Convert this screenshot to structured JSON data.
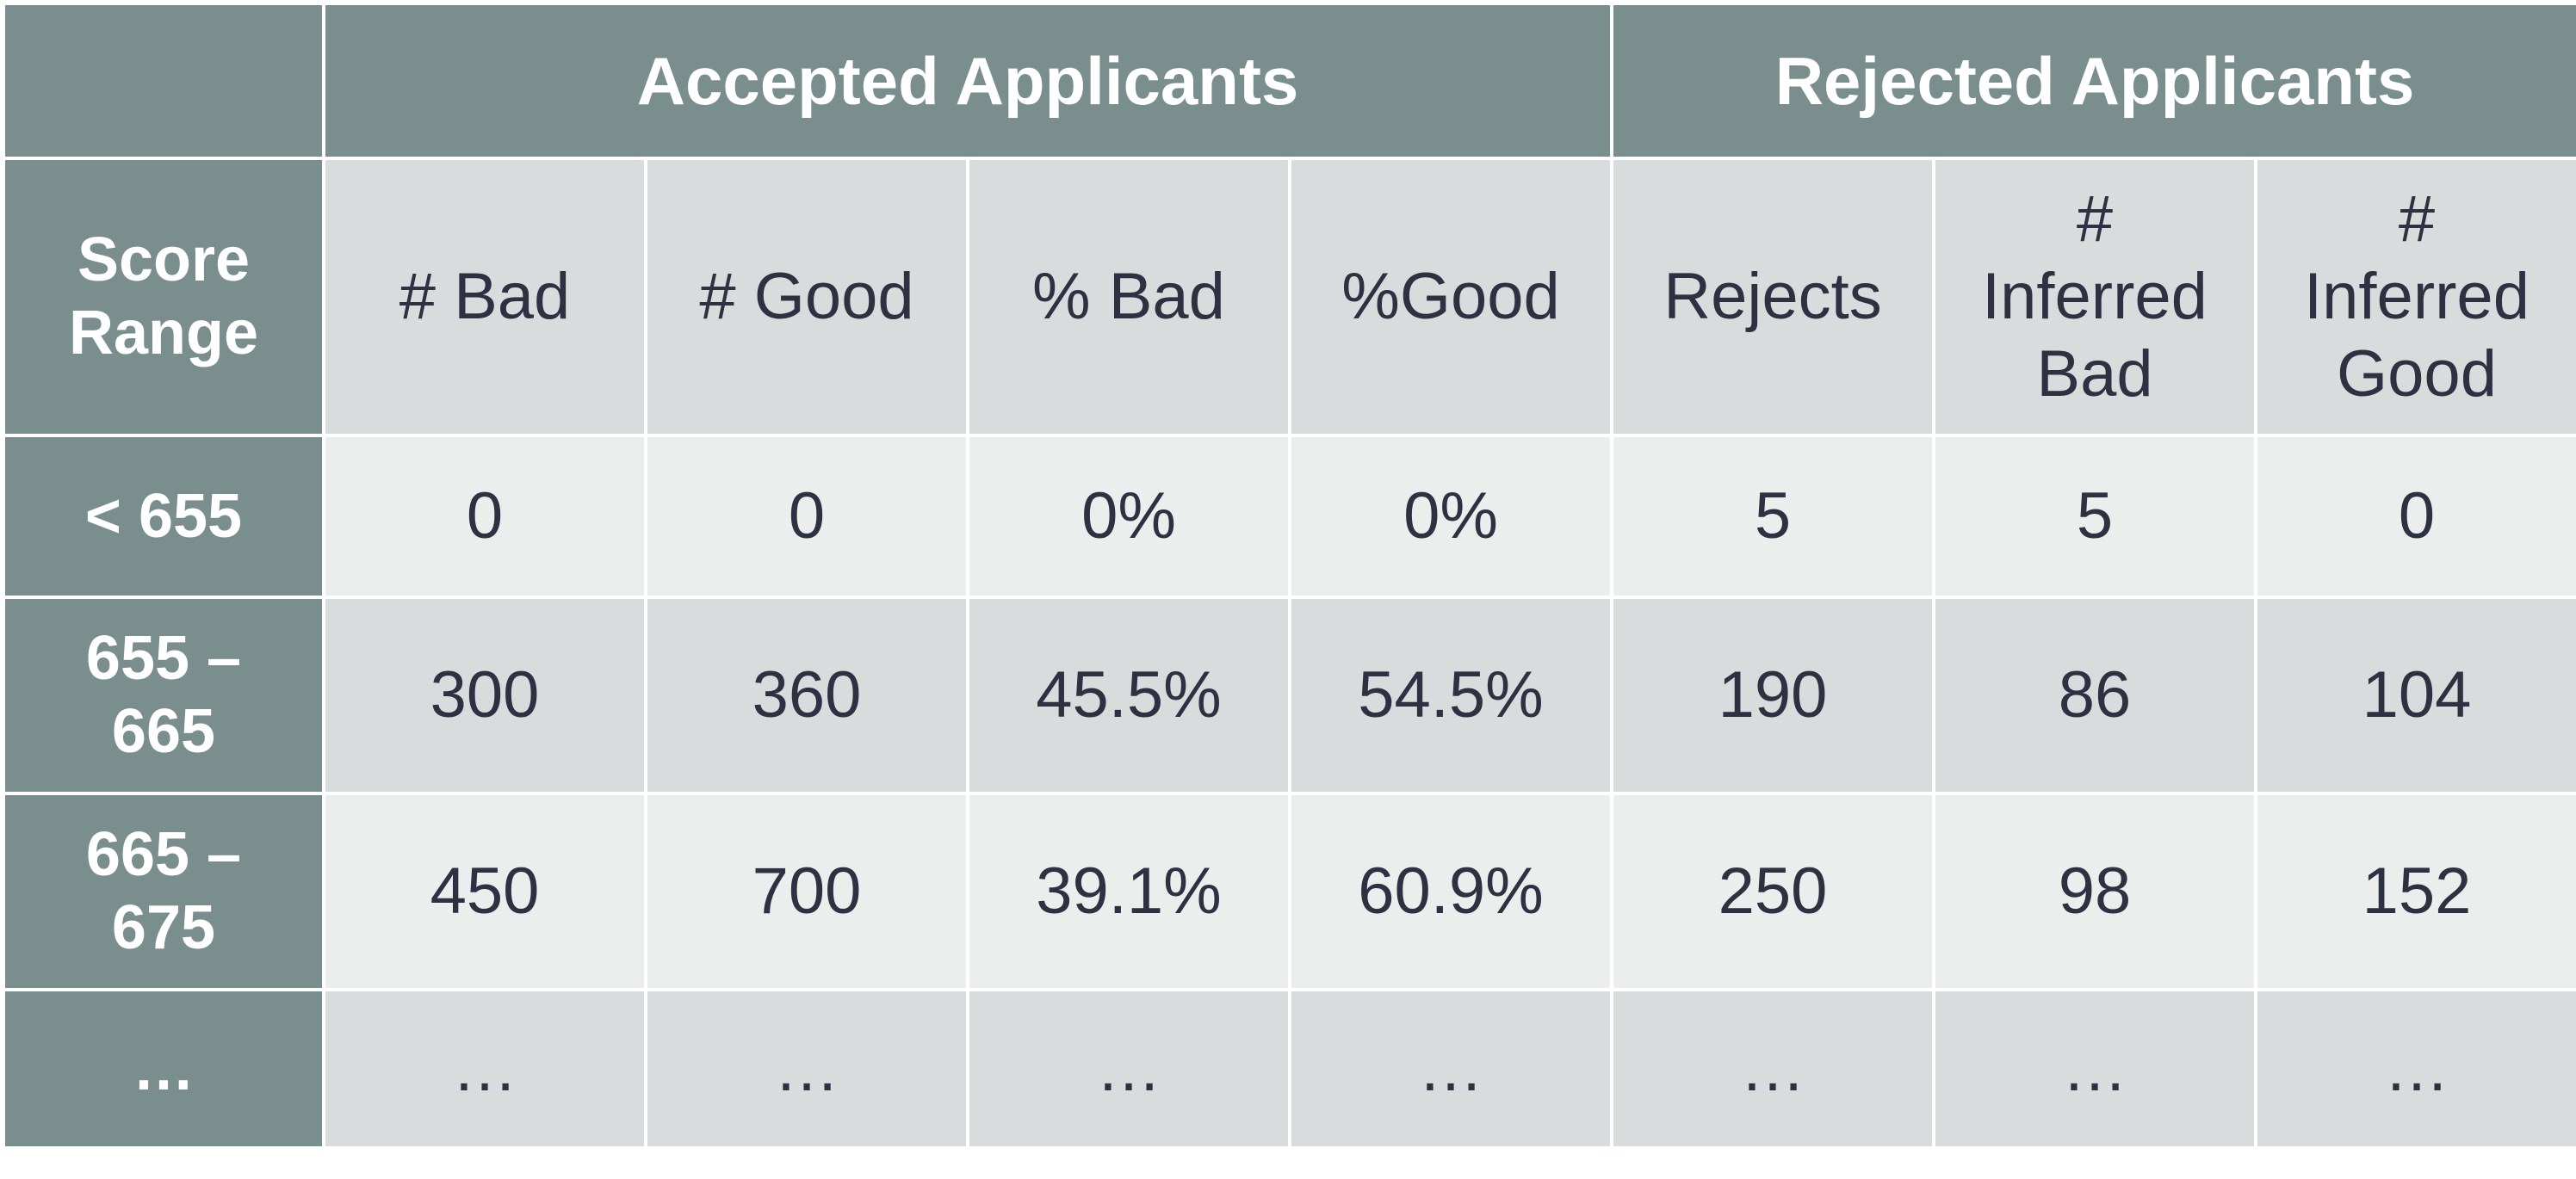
{
  "table": {
    "group_headers": {
      "corner": "",
      "accepted": "Accepted Applicants",
      "rejected": "Rejected Applicants"
    },
    "column_headers": [
      "Score\nRange",
      "# Bad",
      "# Good",
      "% Bad",
      "%Good",
      "Rejects",
      "#\nInferred\nBad",
      "#\nInferred\nGood"
    ],
    "rows": [
      [
        "< 655",
        "0",
        "0",
        "0%",
        "0%",
        "5",
        "5",
        "0"
      ],
      [
        "655 –\n665",
        "300",
        "360",
        "45.5%",
        "54.5%",
        "190",
        "86",
        "104"
      ],
      [
        "665 –\n675",
        "450",
        "700",
        "39.1%",
        "60.9%",
        "250",
        "98",
        "152"
      ],
      [
        "…",
        "…",
        "…",
        "…",
        "…",
        "…",
        "…",
        "…"
      ]
    ]
  },
  "colors": {
    "header_bg": "#7a8e8e",
    "cell_light": "#eceeed",
    "cell_dark": "#d9dcdd",
    "text": "#2e3142"
  }
}
